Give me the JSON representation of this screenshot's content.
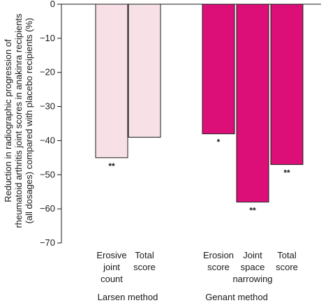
{
  "chart_data": {
    "type": "bar",
    "ylabel_lines": [
      "Reduction in radiographic progression of",
      "rheumatoid arthritis joint scores in anakinra recipients",
      "(all dosages) compared with placebo recipients (%)"
    ],
    "xlabel": "",
    "ylim": [
      -70,
      0
    ],
    "yticks": [
      0,
      -10,
      -20,
      -30,
      -40,
      -50,
      -60,
      -70
    ],
    "grid": false,
    "groups": [
      {
        "name": "Larsen method",
        "color": "#f7e1e6",
        "bars": [
          {
            "label_lines": [
              "Erosive",
              "joint",
              "count"
            ],
            "value": -45,
            "significance": "**"
          },
          {
            "label_lines": [
              "Total",
              "score"
            ],
            "value": -39,
            "significance": ""
          }
        ]
      },
      {
        "name": "Genant method",
        "color": "#dc0f78",
        "bars": [
          {
            "label_lines": [
              "Erosion",
              "score"
            ],
            "value": -38,
            "significance": "*"
          },
          {
            "label_lines": [
              "Joint",
              "space",
              "narrowing"
            ],
            "value": -58,
            "significance": "**"
          },
          {
            "label_lines": [
              "Total",
              "score"
            ],
            "value": -47,
            "significance": "**"
          }
        ]
      }
    ]
  }
}
